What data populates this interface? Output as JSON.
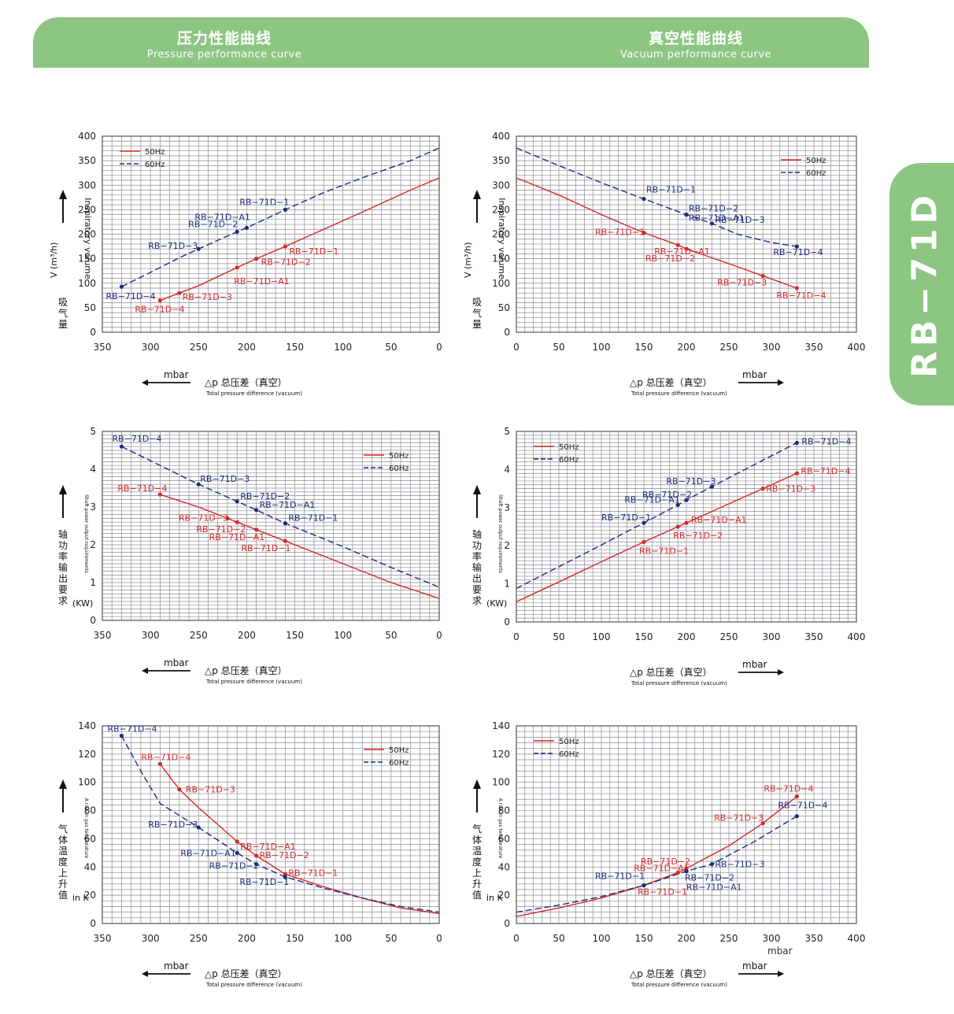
{
  "header": {
    "left_title_cn": "压力性能曲线",
    "left_title_en": "Pressure performance curve",
    "right_title_cn": "真空性能曲线",
    "right_title_en": "Vacuum performance curve"
  },
  "side_tab": {
    "label": "RB−71D"
  },
  "colors": {
    "banner": "#8dc582",
    "hz50": "#d42a26",
    "hz60": "#1f2c7a",
    "grid": "#8a8a96"
  },
  "legend": {
    "hz50": "50Hz",
    "hz60": "60Hz"
  },
  "common": {
    "unit": "mbar",
    "xlabel_cn": "△p  总压差（真空）",
    "xlabel_en": "Total pressure difference (vacuum)",
    "extra_unit_label": "mbar"
  },
  "chart_data": [
    {
      "type": "line",
      "panel": "pressure-volume",
      "xlim": [
        350,
        0
      ],
      "ylim": [
        0,
        400
      ],
      "xticks": [
        350,
        300,
        250,
        200,
        150,
        100,
        50,
        0
      ],
      "yticks": [
        0,
        50,
        100,
        150,
        200,
        250,
        300,
        350,
        400
      ],
      "ylabel_cn": "吸气量",
      "ylabel_unit": "V (m³/h)",
      "ylabel_en": "Inspiratory volume",
      "legend_position": "top-left",
      "series": [
        {
          "name": "50Hz",
          "dash": false,
          "x": [
            290,
            270,
            250,
            210,
            190,
            160,
            120,
            80,
            30,
            0
          ],
          "y": [
            65,
            80,
            95,
            132,
            150,
            175,
            210,
            245,
            290,
            315
          ]
        },
        {
          "name": "60Hz",
          "dash": true,
          "x": [
            330,
            300,
            270,
            250,
            210,
            200,
            160,
            120,
            80,
            30,
            0
          ],
          "y": [
            93,
            122,
            152,
            170,
            205,
            213,
            250,
            285,
            315,
            350,
            376
          ]
        }
      ],
      "points": [
        {
          "s": 0,
          "x": 290,
          "y": 65,
          "label": "RB−71D−4"
        },
        {
          "s": 0,
          "x": 270,
          "y": 80,
          "label": "RB−71D−3"
        },
        {
          "s": 0,
          "x": 210,
          "y": 132,
          "label": "RB−71D−A1"
        },
        {
          "s": 0,
          "x": 190,
          "y": 150,
          "label": "RB−71D−2"
        },
        {
          "s": 0,
          "x": 160,
          "y": 175,
          "label": "RB−71D−1"
        },
        {
          "s": 1,
          "x": 330,
          "y": 93,
          "label": "RB−71D−4"
        },
        {
          "s": 1,
          "x": 250,
          "y": 170,
          "label": "RB−71D−3"
        },
        {
          "s": 1,
          "x": 210,
          "y": 205,
          "label": "RB−71D−2"
        },
        {
          "s": 1,
          "x": 200,
          "y": 213,
          "label": "RB−71D−A1"
        },
        {
          "s": 1,
          "x": 160,
          "y": 250,
          "label": "RB−71D−1"
        }
      ]
    },
    {
      "type": "line",
      "panel": "vacuum-volume",
      "xlim": [
        0,
        400
      ],
      "ylim": [
        0,
        400
      ],
      "xticks": [
        0,
        50,
        100,
        150,
        200,
        250,
        300,
        350,
        400
      ],
      "yticks": [
        0,
        50,
        100,
        150,
        200,
        250,
        300,
        350,
        400
      ],
      "ylabel_cn": "吸气量",
      "ylabel_unit": "V (m³/h)",
      "ylabel_en": "Inspiratory volume",
      "legend_position": "top-right",
      "series": [
        {
          "name": "50Hz",
          "dash": false,
          "x": [
            0,
            50,
            100,
            150,
            190,
            200,
            250,
            290,
            330
          ],
          "y": [
            315,
            280,
            240,
            203,
            178,
            170,
            140,
            115,
            90
          ]
        },
        {
          "name": "60Hz",
          "dash": true,
          "x": [
            0,
            50,
            100,
            150,
            200,
            230,
            260,
            300,
            330
          ],
          "y": [
            376,
            340,
            305,
            272,
            240,
            222,
            200,
            183,
            175
          ]
        }
      ],
      "points": [
        {
          "s": 0,
          "x": 150,
          "y": 203,
          "label": "RB−71D−1"
        },
        {
          "s": 0,
          "x": 190,
          "y": 178,
          "label": "RB−71D−A1"
        },
        {
          "s": 0,
          "x": 200,
          "y": 170,
          "label": "RB−71D−2"
        },
        {
          "s": 0,
          "x": 290,
          "y": 115,
          "label": "RB−71D−3"
        },
        {
          "s": 0,
          "x": 330,
          "y": 90,
          "label": "RB−71D−4"
        },
        {
          "s": 1,
          "x": 150,
          "y": 272,
          "label": "RB−71D−1"
        },
        {
          "s": 1,
          "x": 200,
          "y": 240,
          "label": "RB−71D−2"
        },
        {
          "s": 1,
          "x": 200,
          "y": 240,
          "label": "RB−71D−A1"
        },
        {
          "s": 1,
          "x": 230,
          "y": 222,
          "label": "RB−71D−3"
        },
        {
          "s": 1,
          "x": 330,
          "y": 175,
          "label": "RB−71D−4"
        }
      ]
    },
    {
      "type": "line",
      "panel": "pressure-power",
      "xlim": [
        350,
        0
      ],
      "ylim": [
        0,
        5
      ],
      "xticks": [
        350,
        300,
        250,
        200,
        150,
        100,
        50,
        0
      ],
      "yticks": [
        0,
        1,
        2,
        3,
        4,
        5
      ],
      "ylabel_cn": "轴功率输出要求",
      "ylabel_unit": "(KW)",
      "ylabel_en": "Shaft power output requirements",
      "legend_position": "top-right",
      "series": [
        {
          "name": "50Hz",
          "dash": false,
          "x": [
            290,
            250,
            220,
            210,
            190,
            160,
            100,
            50,
            0
          ],
          "y": [
            3.33,
            3.0,
            2.7,
            2.6,
            2.4,
            2.1,
            1.5,
            1.0,
            0.58
          ]
        },
        {
          "name": "60Hz",
          "dash": true,
          "x": [
            330,
            250,
            210,
            190,
            160,
            100,
            50,
            0
          ],
          "y": [
            4.6,
            3.6,
            3.15,
            2.92,
            2.57,
            1.95,
            1.4,
            0.88
          ]
        }
      ],
      "points": [
        {
          "s": 0,
          "x": 290,
          "y": 3.33,
          "label": "RB−71D−4"
        },
        {
          "s": 0,
          "x": 220,
          "y": 2.7,
          "label": "RB−71D−3"
        },
        {
          "s": 0,
          "x": 210,
          "y": 2.6,
          "label": "RB−71D−2"
        },
        {
          "s": 0,
          "x": 190,
          "y": 2.4,
          "label": "RB−71D−A1"
        },
        {
          "s": 0,
          "x": 160,
          "y": 2.1,
          "label": "RB−71D−1"
        },
        {
          "s": 1,
          "x": 330,
          "y": 4.6,
          "label": "RB−71D−4"
        },
        {
          "s": 1,
          "x": 250,
          "y": 3.6,
          "label": "RB−71D−3"
        },
        {
          "s": 1,
          "x": 210,
          "y": 3.15,
          "label": "RB−71D−2"
        },
        {
          "s": 1,
          "x": 190,
          "y": 2.92,
          "label": "RB−71D−A1"
        },
        {
          "s": 1,
          "x": 160,
          "y": 2.57,
          "label": "RB−71D−1"
        }
      ]
    },
    {
      "type": "line",
      "panel": "vacuum-power",
      "xlim": [
        0,
        400
      ],
      "ylim": [
        0,
        5
      ],
      "xticks": [
        0,
        50,
        100,
        150,
        200,
        250,
        300,
        350,
        400
      ],
      "yticks": [
        0,
        1,
        2,
        3,
        4,
        5
      ],
      "ylabel_cn": "轴功率输出要求",
      "ylabel_unit": "(KW)",
      "ylabel_en": "Shaft power output requirements",
      "legend_position": "top-left",
      "series": [
        {
          "name": "50Hz",
          "dash": false,
          "x": [
            0,
            50,
            100,
            150,
            190,
            200,
            250,
            290,
            330
          ],
          "y": [
            0.53,
            1.05,
            1.58,
            2.1,
            2.5,
            2.6,
            3.1,
            3.5,
            3.9
          ]
        },
        {
          "name": "60Hz",
          "dash": true,
          "x": [
            0,
            50,
            100,
            150,
            190,
            200,
            230,
            280,
            330
          ],
          "y": [
            0.88,
            1.45,
            2.02,
            2.6,
            3.07,
            3.2,
            3.55,
            4.13,
            4.7
          ]
        }
      ],
      "points": [
        {
          "s": 0,
          "x": 150,
          "y": 2.1,
          "label": "RB−71D−1"
        },
        {
          "s": 0,
          "x": 190,
          "y": 2.5,
          "label": "RB−71D−2"
        },
        {
          "s": 0,
          "x": 200,
          "y": 2.6,
          "label": "RB−71D−A1"
        },
        {
          "s": 0,
          "x": 290,
          "y": 3.5,
          "label": "RB−71D−3"
        },
        {
          "s": 0,
          "x": 330,
          "y": 3.9,
          "label": "RB−71D−4"
        },
        {
          "s": 1,
          "x": 150,
          "y": 2.6,
          "label": "RB−71D−1"
        },
        {
          "s": 1,
          "x": 190,
          "y": 3.07,
          "label": "RB−71D−A1"
        },
        {
          "s": 1,
          "x": 200,
          "y": 3.2,
          "label": "RB−71D−2"
        },
        {
          "s": 1,
          "x": 230,
          "y": 3.55,
          "label": "RB−71D−3"
        },
        {
          "s": 1,
          "x": 330,
          "y": 4.7,
          "label": "RB−71D−4"
        }
      ]
    },
    {
      "type": "line",
      "panel": "pressure-temperature",
      "xlim": [
        350,
        0
      ],
      "ylim": [
        0,
        140
      ],
      "xticks": [
        350,
        300,
        250,
        200,
        150,
        100,
        50,
        0
      ],
      "yticks": [
        0,
        20,
        40,
        60,
        80,
        100,
        120,
        140
      ],
      "ylabel_cn": "气体温度上升值",
      "ylabel_unit": "in K",
      "ylabel_en": "A rise in gas temperature",
      "legend_position": "top-right",
      "series": [
        {
          "name": "50Hz",
          "dash": false,
          "x": [
            290,
            270,
            250,
            210,
            190,
            160,
            120,
            80,
            40,
            0
          ],
          "y": [
            113,
            95,
            82,
            58,
            48,
            35,
            26,
            18,
            11,
            7
          ]
        },
        {
          "name": "60Hz",
          "dash": true,
          "x": [
            330,
            310,
            290,
            250,
            210,
            190,
            160,
            120,
            80,
            40,
            0
          ],
          "y": [
            133,
            108,
            85,
            68,
            50,
            42,
            33,
            25,
            18,
            12,
            8
          ]
        }
      ],
      "points": [
        {
          "s": 0,
          "x": 290,
          "y": 113,
          "label": "RB−71D−4"
        },
        {
          "s": 0,
          "x": 270,
          "y": 95,
          "label": "RB−71D−3"
        },
        {
          "s": 0,
          "x": 210,
          "y": 58,
          "label": "RB−71D−A1"
        },
        {
          "s": 0,
          "x": 190,
          "y": 48,
          "label": "RB−71D−2"
        },
        {
          "s": 0,
          "x": 160,
          "y": 35,
          "label": "RB−71D−1"
        },
        {
          "s": 1,
          "x": 330,
          "y": 133,
          "label": "RB−71D−4"
        },
        {
          "s": 1,
          "x": 250,
          "y": 68,
          "label": "RB−71D−3"
        },
        {
          "s": 1,
          "x": 210,
          "y": 50,
          "label": "RB−71D−A1"
        },
        {
          "s": 1,
          "x": 190,
          "y": 42,
          "label": "RB−71D−2"
        },
        {
          "s": 1,
          "x": 160,
          "y": 33,
          "label": "RB−71D−1"
        }
      ]
    },
    {
      "type": "line",
      "panel": "vacuum-temperature",
      "xlim": [
        0,
        400
      ],
      "ylim": [
        0,
        140
      ],
      "xticks": [
        0,
        50,
        100,
        150,
        200,
        250,
        300,
        350,
        400
      ],
      "yticks": [
        0,
        20,
        40,
        60,
        80,
        100,
        120,
        140
      ],
      "ylabel_cn": "气体温度上升值",
      "ylabel_unit": "in K",
      "ylabel_en": "A rise in gas temperature",
      "legend_position": "top-left",
      "series": [
        {
          "name": "50Hz",
          "dash": false,
          "x": [
            0,
            50,
            100,
            150,
            190,
            200,
            250,
            290,
            330
          ],
          "y": [
            5,
            11,
            18,
            27,
            36,
            39,
            55,
            71,
            90
          ]
        },
        {
          "name": "60Hz",
          "dash": true,
          "x": [
            0,
            50,
            100,
            150,
            200,
            230,
            280,
            330
          ],
          "y": [
            8,
            13,
            19,
            27,
            37,
            42,
            58,
            76
          ]
        }
      ],
      "points": [
        {
          "s": 0,
          "x": 150,
          "y": 27,
          "label": "RB−71D−1"
        },
        {
          "s": 0,
          "x": 190,
          "y": 36,
          "label": "RB−71D−A1"
        },
        {
          "s": 0,
          "x": 200,
          "y": 39,
          "label": "RB−71D−2"
        },
        {
          "s": 0,
          "x": 290,
          "y": 71,
          "label": "RB−71D−3"
        },
        {
          "s": 0,
          "x": 330,
          "y": 90,
          "label": "RB−71D−4"
        },
        {
          "s": 1,
          "x": 150,
          "y": 27,
          "label": "RB−71D−1"
        },
        {
          "s": 1,
          "x": 200,
          "y": 37,
          "label": "RB−71D−2"
        },
        {
          "s": 1,
          "x": 200,
          "y": 37,
          "label": "RB−71D−A1"
        },
        {
          "s": 1,
          "x": 230,
          "y": 42,
          "label": "RB−71D−3"
        },
        {
          "s": 1,
          "x": 330,
          "y": 76,
          "label": "RB−71D−4"
        }
      ]
    }
  ]
}
